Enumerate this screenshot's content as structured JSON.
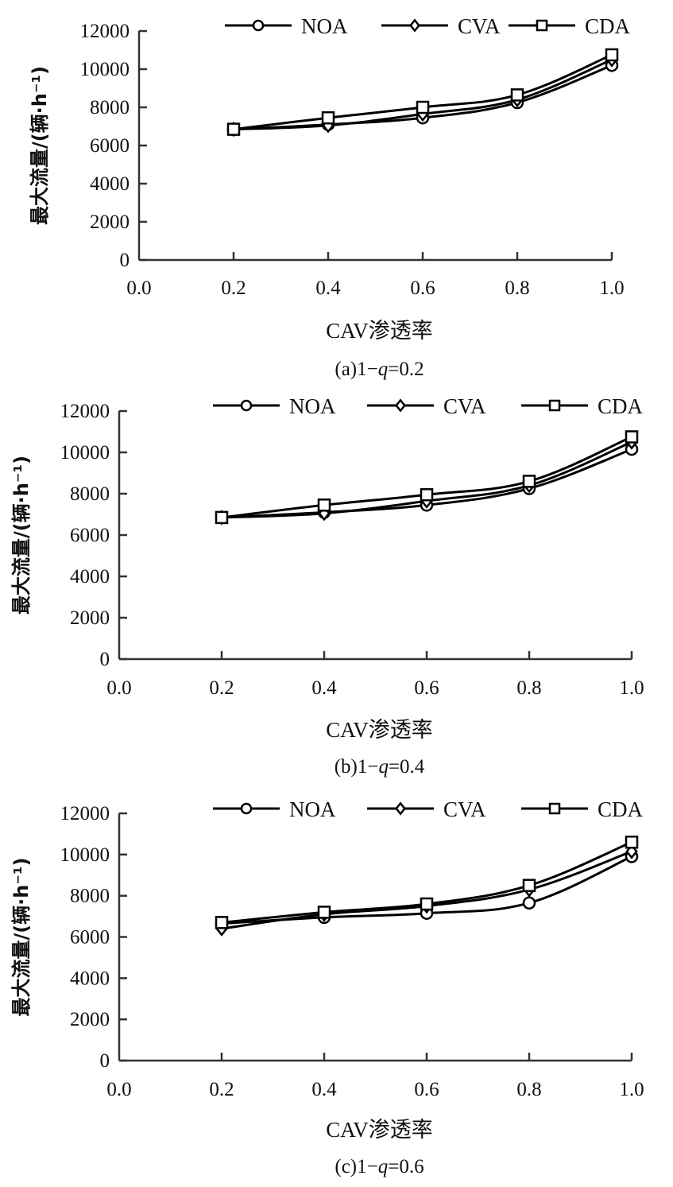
{
  "figure": {
    "series_names": [
      "NOA",
      "CVA",
      "CDA"
    ],
    "marker_shapes": [
      "circle",
      "diamond",
      "square"
    ]
  },
  "chart_data": [
    {
      "type": "line",
      "caption_prefix": "(a)1−",
      "caption_var": "q",
      "caption_suffix": "=0.2",
      "xlabel": "CAV渗透率",
      "ylabel": "最大流量/(辆·h⁻¹)",
      "xlim": [
        0.0,
        1.0
      ],
      "ylim": [
        0,
        12000
      ],
      "xticks": [
        "0.0",
        "0.2",
        "0.4",
        "0.6",
        "0.8",
        "1.0"
      ],
      "yticks": [
        "0",
        "2000",
        "4000",
        "6000",
        "8000",
        "10000",
        "12000"
      ],
      "legend": "top",
      "grid": false,
      "x": [
        0.2,
        0.4,
        0.6,
        0.8,
        1.0
      ],
      "series": [
        {
          "name": "NOA",
          "marker": "circle",
          "values": [
            6850,
            7100,
            7450,
            8250,
            10200
          ]
        },
        {
          "name": "CVA",
          "marker": "diamond",
          "values": [
            6850,
            7050,
            7650,
            8400,
            10500
          ]
        },
        {
          "name": "CDA",
          "marker": "square",
          "values": [
            6850,
            7450,
            8000,
            8650,
            10750
          ]
        }
      ]
    },
    {
      "type": "line",
      "caption_prefix": "(b)1−",
      "caption_var": "q",
      "caption_suffix": "=0.4",
      "xlabel": "CAV渗透率",
      "ylabel": "最大流量/(辆·h⁻¹)",
      "xlim": [
        0.0,
        1.0
      ],
      "ylim": [
        0,
        12000
      ],
      "xticks": [
        "0.0",
        "0.2",
        "0.4",
        "0.6",
        "0.8",
        "1.0"
      ],
      "yticks": [
        "0",
        "2000",
        "4000",
        "6000",
        "8000",
        "10000",
        "12000"
      ],
      "legend": "top",
      "grid": false,
      "x": [
        0.2,
        0.4,
        0.6,
        0.8,
        1.0
      ],
      "series": [
        {
          "name": "NOA",
          "marker": "circle",
          "values": [
            6850,
            7100,
            7450,
            8250,
            10150
          ]
        },
        {
          "name": "CVA",
          "marker": "diamond",
          "values": [
            6850,
            7050,
            7650,
            8400,
            10500
          ]
        },
        {
          "name": "CDA",
          "marker": "square",
          "values": [
            6850,
            7450,
            7950,
            8600,
            10750
          ]
        }
      ]
    },
    {
      "type": "line",
      "caption_prefix": "(c)1−",
      "caption_var": "q",
      "caption_suffix": "=0.6",
      "xlabel": "CAV渗透率",
      "ylabel": "最大流量/(辆·h⁻¹)",
      "xlim": [
        0.0,
        1.0
      ],
      "ylim": [
        0,
        12000
      ],
      "xticks": [
        "0.0",
        "0.2",
        "0.4",
        "0.6",
        "0.8",
        "1.0"
      ],
      "yticks": [
        "0",
        "2000",
        "4000",
        "6000",
        "8000",
        "10000",
        "12000"
      ],
      "legend": "top",
      "grid": false,
      "x": [
        0.2,
        0.4,
        0.6,
        0.8,
        1.0
      ],
      "series": [
        {
          "name": "NOA",
          "marker": "circle",
          "values": [
            6650,
            6950,
            7150,
            7650,
            9900
          ]
        },
        {
          "name": "CVA",
          "marker": "diamond",
          "values": [
            6400,
            7100,
            7500,
            8300,
            10150
          ]
        },
        {
          "name": "CDA",
          "marker": "square",
          "values": [
            6700,
            7200,
            7600,
            8500,
            10600
          ]
        }
      ]
    }
  ]
}
